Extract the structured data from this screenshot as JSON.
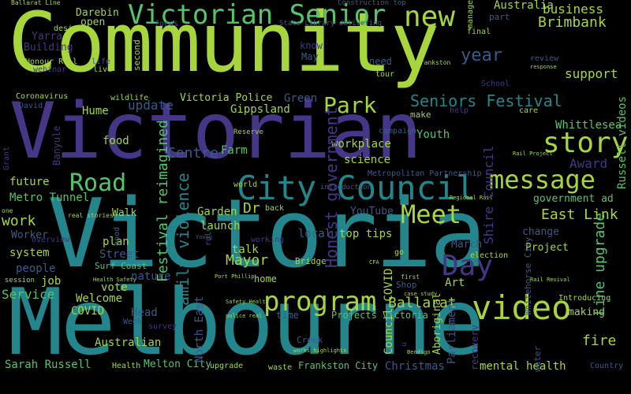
{
  "colors": {
    "background": "#000000",
    "lime": "#a6d63c",
    "teal": "#23868c",
    "purple": "#463687",
    "green": "#54c568",
    "blue": "#3b5a8c"
  },
  "words": [
    {
      "text": "Community",
      "color": "#a6d63c"
    },
    {
      "text": "Victorian",
      "color": "#463687"
    },
    {
      "text": "Victoria",
      "color": "#23868c"
    },
    {
      "text": "Melbourne",
      "color": "#23868c"
    },
    {
      "text": "Victorian Senior",
      "color": "#54c568"
    },
    {
      "text": "new",
      "color": "#a6d63c"
    },
    {
      "text": "City Council",
      "color": "#23868c"
    },
    {
      "text": "Road",
      "color": "#54c568"
    },
    {
      "text": "message",
      "color": "#a6d63c"
    },
    {
      "text": "story",
      "color": "#a6d63c"
    },
    {
      "text": "Park",
      "color": "#a6d63c"
    },
    {
      "text": "Seniors Festival",
      "color": "#23868c"
    },
    {
      "text": "program",
      "color": "#a6d63c"
    },
    {
      "text": "video",
      "color": "#a6d63c"
    },
    {
      "text": "Meet",
      "color": "#a6d63c"
    },
    {
      "text": "Day",
      "color": "#463687"
    },
    {
      "text": "year",
      "color": "#3b5a8c"
    },
    {
      "text": "Brimbank",
      "color": "#a6d63c"
    },
    {
      "text": "business",
      "color": "#a6d63c"
    },
    {
      "text": "support",
      "color": "#a6d63c"
    },
    {
      "text": "Australia",
      "color": "#a6d63c"
    },
    {
      "text": "Victoria Police",
      "color": "#a6d63c"
    },
    {
      "text": "Gippsland",
      "color": "#a6d63c"
    },
    {
      "text": "update",
      "color": "#3b5a8c"
    },
    {
      "text": "Green",
      "color": "#3b5a8c"
    },
    {
      "text": "Hume",
      "color": "#a6d63c"
    },
    {
      "text": "food",
      "color": "#a6d63c"
    },
    {
      "text": "Centre",
      "color": "#3b5a8c"
    },
    {
      "text": "Farm",
      "color": "#54c568"
    },
    {
      "text": "workplace",
      "color": "#a6d63c"
    },
    {
      "text": "science",
      "color": "#a6d63c"
    },
    {
      "text": "Youth",
      "color": "#54c568"
    },
    {
      "text": "Award",
      "color": "#463687"
    },
    {
      "text": "Whittlesea",
      "color": "#54c568"
    },
    {
      "text": "future",
      "color": "#a6d63c"
    },
    {
      "text": "Metro Tunnel",
      "color": "#54c568"
    },
    {
      "text": "work",
      "color": "#a6d63c"
    },
    {
      "text": "Worker",
      "color": "#3b5a8c"
    },
    {
      "text": "system",
      "color": "#a6d63c"
    },
    {
      "text": "people",
      "color": "#3b5a8c"
    },
    {
      "text": "job",
      "color": "#a6d63c"
    },
    {
      "text": "Service",
      "color": "#54c568"
    },
    {
      "text": "Welcome",
      "color": "#a6d63c"
    },
    {
      "text": "COVID",
      "color": "#a6d63c"
    },
    {
      "text": "vote",
      "color": "#a6d63c"
    },
    {
      "text": "Head",
      "color": "#3b5a8c"
    },
    {
      "text": "Australian",
      "color": "#a6d63c"
    },
    {
      "text": "Sarah Russell",
      "color": "#54c568"
    },
    {
      "text": "Health",
      "color": "#a6d63c"
    },
    {
      "text": "Melton City",
      "color": "#54c568"
    },
    {
      "text": "upgrade",
      "color": "#a6d63c"
    },
    {
      "text": "waste",
      "color": "#a6d63c"
    },
    {
      "text": "Frankston City",
      "color": "#54c568"
    },
    {
      "text": "Christmas",
      "color": "#3b5a8c"
    },
    {
      "text": "mental health",
      "color": "#a6d63c"
    },
    {
      "text": "fire",
      "color": "#a6d63c"
    },
    {
      "text": "Country",
      "color": "#3b5a8c"
    },
    {
      "text": "Mayor",
      "color": "#a6d63c"
    },
    {
      "text": "talk",
      "color": "#a6d63c"
    },
    {
      "text": "home",
      "color": "#a6d63c"
    },
    {
      "text": "Ballarat",
      "color": "#a6d63c"
    },
    {
      "text": "Projects Victoria",
      "color": "#54c568"
    },
    {
      "text": "Walk",
      "color": "#a6d63c"
    },
    {
      "text": "Street",
      "color": "#3b5a8c"
    },
    {
      "text": "Surf Coast",
      "color": "#54c568"
    },
    {
      "text": "plan",
      "color": "#a6d63c"
    },
    {
      "text": "Garden",
      "color": "#a6d63c"
    },
    {
      "text": "Dr",
      "color": "#a6d63c"
    },
    {
      "text": "launch",
      "color": "#a6d63c"
    },
    {
      "text": "local",
      "color": "#3b5a8c"
    },
    {
      "text": "top tips",
      "color": "#a6d63c"
    },
    {
      "text": "YouTube",
      "color": "#3b5a8c"
    },
    {
      "text": "East Link",
      "color": "#a6d63c"
    },
    {
      "text": "government ad",
      "color": "#54c568"
    },
    {
      "text": "change",
      "color": "#3b5a8c"
    },
    {
      "text": "Project",
      "color": "#a6d63c"
    },
    {
      "text": "March",
      "color": "#3b5a8c"
    },
    {
      "text": "election",
      "color": "#a6d63c"
    },
    {
      "text": "Art",
      "color": "#a6d63c"
    },
    {
      "text": "Introducing",
      "color": "#a6d63c"
    },
    {
      "text": "making",
      "color": "#a6d63c"
    },
    {
      "text": "Bridge",
      "color": "#a6d63c"
    },
    {
      "text": "Yarra",
      "color": "#463687"
    },
    {
      "text": "Building",
      "color": "#463687"
    },
    {
      "text": "Honour Roll",
      "color": "#a6d63c"
    },
    {
      "text": "webinar",
      "color": "#463687"
    },
    {
      "text": "Darebin",
      "color": "#a6d63c"
    },
    {
      "text": "open",
      "color": "#a6d63c"
    },
    {
      "text": "design",
      "color": "#a6d63c"
    },
    {
      "text": "life",
      "color": "#3b5a8c"
    },
    {
      "text": "live",
      "color": "#a6d63c"
    },
    {
      "text": "wildlife",
      "color": "#a6d63c"
    },
    {
      "text": "Coronavirus",
      "color": "#a6d63c"
    },
    {
      "text": "David",
      "color": "#3b5a8c"
    },
    {
      "text": "know",
      "color": "#463687"
    },
    {
      "text": "May",
      "color": "#3b5a8c"
    },
    {
      "text": "need",
      "color": "#3b5a8c"
    },
    {
      "text": "tour",
      "color": "#a6d63c"
    },
    {
      "text": "part",
      "color": "#3b5a8c"
    },
    {
      "text": "final",
      "color": "#a6d63c"
    },
    {
      "text": "review",
      "color": "#3b5a8c"
    },
    {
      "text": "School",
      "color": "#463687"
    },
    {
      "text": "care",
      "color": "#a6d63c"
    },
    {
      "text": "make",
      "color": "#a6d63c"
    },
    {
      "text": "help",
      "color": "#463687"
    },
    {
      "text": "back",
      "color": "#a6d63c"
    },
    {
      "text": "world",
      "color": "#a6d63c"
    },
    {
      "text": "working",
      "color": "#463687"
    },
    {
      "text": "go",
      "color": "#a6d63c"
    },
    {
      "text": "Shop",
      "color": "#3b5a8c"
    },
    {
      "text": "first",
      "color": "#a6d63c"
    },
    {
      "text": "time",
      "color": "#a6d63c"
    },
    {
      "text": "Creek",
      "color": "#3b5a8c"
    },
    {
      "text": "Week",
      "color": "#3b5a8c"
    },
    {
      "text": "survey",
      "color": "#3b5a8c"
    },
    {
      "text": "one",
      "color": "#463687"
    },
    {
      "text": "session",
      "color": "#a6d63c"
    },
    {
      "text": "focus",
      "color": "#a6d63c"
    },
    {
      "text": "State Library delivering",
      "color": "#3b5a8c"
    },
    {
      "text": "Construction top",
      "color": "#3b5a8c"
    },
    {
      "text": "Ballarat Line",
      "color": "#3b5a8c"
    },
    {
      "text": "Metropolitan Partnership",
      "color": "#a6d63c"
    },
    {
      "text": "introduction",
      "color": "#3b5a8c"
    },
    {
      "text": "campaign",
      "color": "#3b5a8c"
    },
    {
      "text": "Reserve",
      "color": "#3b5a8c"
    },
    {
      "text": "Frankston",
      "color": "#a6d63c"
    },
    {
      "text": "response",
      "color": "#a6d63c"
    },
    {
      "text": "Regional Rail",
      "color": "#a6d63c"
    },
    {
      "text": "real stories",
      "color": "#a6d63c"
    },
    {
      "text": "overview",
      "color": "#a6d63c"
    },
    {
      "text": "Young",
      "color": "#463687"
    },
    {
      "text": "Port Phillip",
      "color": "#3b5a8c"
    },
    {
      "text": "Safety Health",
      "color": "#a6d63c"
    },
    {
      "text": "police real",
      "color": "#a6d63c"
    },
    {
      "text": "Health Safety",
      "color": "#a6d63c"
    },
    {
      "text": "Rail Revival",
      "color": "#a6d63c"
    },
    {
      "text": "case study",
      "color": "#a6d63c"
    },
    {
      "text": "works highlights",
      "color": "#a6d63c"
    },
    {
      "text": "Bendigo",
      "color": "#a6d63c"
    },
    {
      "text": "CFA",
      "color": "#a6d63c"
    },
    {
      "text": "Rail Project",
      "color": "#54c568"
    },
    {
      "text": "Festival reimagined",
      "color": "#23868c"
    },
    {
      "text": "family violence",
      "color": "#3b5a8c"
    },
    {
      "text": "North East",
      "color": "#463687"
    },
    {
      "text": "Honest government",
      "color": "#463687"
    },
    {
      "text": "Shire Council",
      "color": "#54c568"
    },
    {
      "text": "Line upgrade",
      "color": "#54c568"
    },
    {
      "text": "Russell videos",
      "color": "#3b5a8c"
    },
    {
      "text": "Whitehorse City",
      "color": "#463687"
    },
    {
      "text": "recovery",
      "color": "#3b5a8c"
    },
    {
      "text": "Parliament",
      "color": "#3b5a8c"
    },
    {
      "text": "Aboriginal",
      "color": "#463687"
    },
    {
      "text": "Council COVID",
      "color": "#463687"
    },
    {
      "text": "water",
      "color": "#a6d63c"
    },
    {
      "text": "Banyule",
      "color": "#a6d63c"
    },
    {
      "text": "Grant",
      "color": "#463687"
    },
    {
      "text": "management",
      "color": "#3b5a8c"
    },
    {
      "text": "second",
      "color": "#3b5a8c"
    },
    {
      "text": "u",
      "color": "#3b5a8c"
    },
    {
      "text": "good",
      "color": "#a6d63c"
    },
    {
      "text": "role",
      "color": "#a6d63c"
    },
    {
      "text": "nature",
      "color": "#a6d63c"
    }
  ]
}
